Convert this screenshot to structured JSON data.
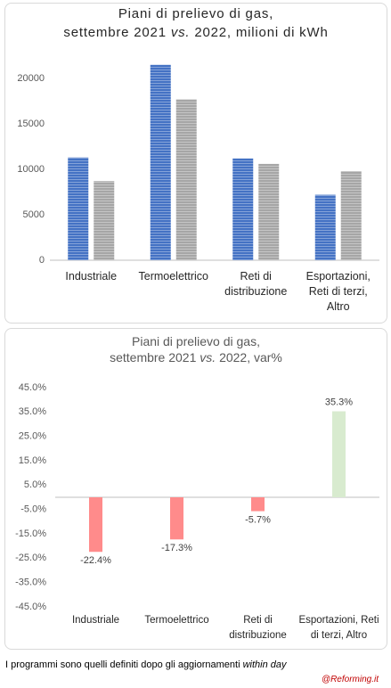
{
  "chart_data": [
    {
      "type": "grouped-bar",
      "title": [
        "Piani di prelievo di gas,",
        "settembre 2021",
        "vs.",
        "2022, milioni di kWh"
      ],
      "categories": [
        "Industriale",
        "Termoelettrico",
        "Reti di distribuzione",
        "Esportazioni, Reti di terzi, Altro"
      ],
      "series": [
        {
          "color": "#4472c4",
          "values": [
            11300,
            21500,
            11200,
            7200
          ]
        },
        {
          "color": "#a6a6a6",
          "values": [
            8700,
            17700,
            10600,
            9800
          ]
        }
      ],
      "ylim": [
        0,
        22500
      ],
      "yticks": [
        0,
        5000,
        10000,
        15000,
        20000
      ],
      "grid": false
    },
    {
      "type": "bar",
      "title": [
        "Piani di prelievo di gas,",
        "settembre 2021",
        "vs.",
        "2022, var%"
      ],
      "categories": [
        "Industriale",
        "Termoelettrico",
        "Reti di distribuzione",
        "Esportazioni, Reti di terzi, Altro"
      ],
      "values": [
        -22.4,
        -17.3,
        -5.7,
        35.3
      ],
      "value_labels": [
        "-22.4%",
        "-17.3%",
        "-5.7%",
        "35.3%"
      ],
      "colors": [
        "#ff8b8b",
        "#ff8b8b",
        "#ff8b8b",
        "#d8ebcf"
      ],
      "ylim": [
        -45,
        45
      ],
      "yticks": [
        {
          "value": 45,
          "label": "45.0%"
        },
        {
          "value": 35,
          "label": "35.0%"
        },
        {
          "value": 25,
          "label": "25.0%"
        },
        {
          "value": 15,
          "label": "15.0%"
        },
        {
          "value": 5,
          "label": "5.0%"
        },
        {
          "value": -5,
          "label": "-5.0%"
        },
        {
          "value": -15,
          "label": "-15.0%"
        },
        {
          "value": -25,
          "label": "-25.0%"
        },
        {
          "value": -35,
          "label": "-35.0%"
        },
        {
          "value": -45,
          "label": "-45.0%"
        }
      ],
      "grid": false
    }
  ],
  "footer": {
    "note": "I programmi sono quelli definiti dopo gli aggiornamenti",
    "note_italic": "within day",
    "source": "@Reforming.it"
  }
}
